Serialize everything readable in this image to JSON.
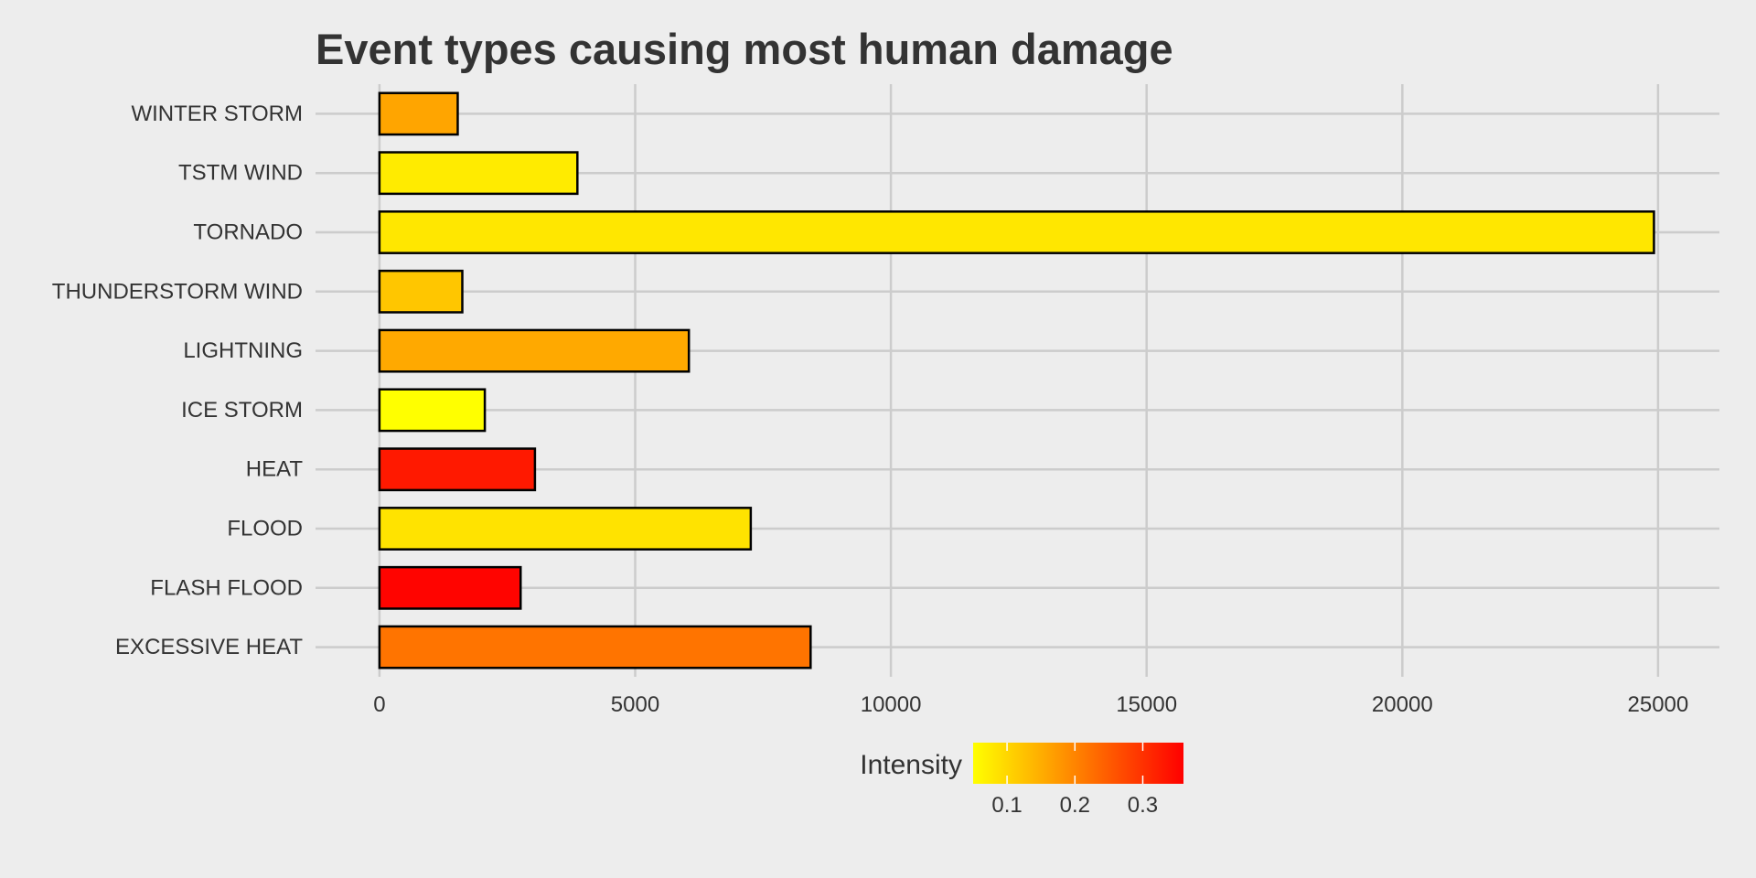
{
  "chart_data": {
    "type": "bar",
    "orientation": "horizontal",
    "title": "Event types causing most human damage",
    "xlabel": "",
    "ylabel": "",
    "categories": [
      "EXCESSIVE HEAT",
      "FLASH FLOOD",
      "FLOOD",
      "HEAT",
      "ICE STORM",
      "LIGHTNING",
      "THUNDERSTORM WIND",
      "TORNADO",
      "TSTM WIND",
      "WINTER STORM"
    ],
    "values": [
      8430,
      2760,
      7260,
      3040,
      2060,
      6050,
      1620,
      24920,
      3870,
      1530
    ],
    "intensity": [
      0.22,
      0.355,
      0.085,
      0.33,
      0.05,
      0.155,
      0.12,
      0.08,
      0.075,
      0.16
    ],
    "xlim": [
      -1250,
      26200
    ],
    "xticks": [
      0,
      5000,
      10000,
      15000,
      20000,
      25000
    ],
    "grid": true,
    "legend": {
      "title": "Intensity",
      "position": "bottom",
      "range": [
        0.05,
        0.36
      ],
      "ticks": [
        0.1,
        0.2,
        0.3
      ],
      "colors": [
        "#ffff00",
        "#ffc000",
        "#ff8000",
        "#ff4000",
        "#ff0000"
      ]
    },
    "colors": {
      "background": "#ededed",
      "grid": "#cccccc",
      "bar_stroke": "#000000",
      "text": "#333333"
    }
  }
}
